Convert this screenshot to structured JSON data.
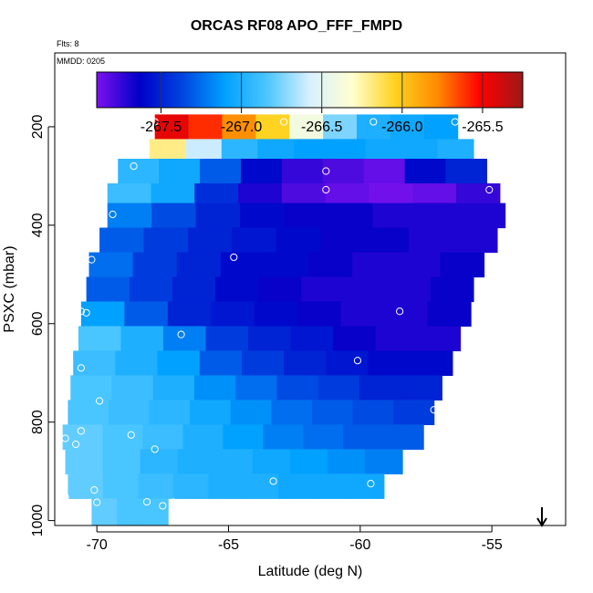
{
  "chart_data": {
    "type": "heatmap",
    "title": "ORCAS RF08 APO_FFF_FMPD",
    "annotations": {
      "flights": "Flts: 8",
      "date": "MMDD: 0205"
    },
    "xlabel": "Latitude (deg N)",
    "ylabel": "PSXC (mbar)",
    "xlim": [
      -71.6,
      -52.2
    ],
    "ylim": [
      1010,
      50
    ],
    "y_inverted": true,
    "x_ticks": [
      -70,
      -65,
      -60,
      -55
    ],
    "x_tick_labels": [
      "-70",
      "-65",
      "-60",
      "-55"
    ],
    "y_ticks": [
      200,
      400,
      600,
      800,
      1000
    ],
    "y_tick_labels": [
      "200",
      "400",
      "600",
      "800",
      "1000"
    ],
    "colorbar": {
      "range": [
        -267.9,
        -265.25
      ],
      "ticks": [
        -267.5,
        -267.0,
        -266.5,
        -266.0,
        -265.5
      ],
      "tick_labels": [
        "-267.5",
        "-267.0",
        "-266.5",
        "-266.0",
        "-265.5"
      ],
      "stops": [
        "#7b11ef",
        "#0000c8",
        "#0044e0",
        "#00a0ff",
        "#4cc6ff",
        "#d8f0ff",
        "#ffffd0",
        "#ffd21f",
        "#ff8a00",
        "#ff0000",
        "#9e1818"
      ]
    },
    "pressure_bands": [
      {
        "p_top": 175,
        "p_bottom": 225,
        "lat_start": -67.8,
        "lat_end": -56.3,
        "values": [
          -265.45,
          -265.6,
          -265.8,
          -266.05,
          -266.4,
          -266.75,
          -267.0,
          -267.05,
          -267.1
        ]
      },
      {
        "p_top": 225,
        "p_bottom": 265,
        "lat_start": -68.0,
        "lat_end": -55.7,
        "values": [
          -266.2,
          -266.6,
          -266.95,
          -267.05,
          -267.1,
          -267.1,
          -267.05,
          -267.05,
          -267.0
        ]
      },
      {
        "p_top": 265,
        "p_bottom": 315,
        "lat_start": -69.2,
        "lat_end": -55.2,
        "values": [
          -266.95,
          -267.05,
          -267.3,
          -267.6,
          -267.75,
          -267.8,
          -267.85,
          -267.6,
          -267.5
        ]
      },
      {
        "p_top": 315,
        "p_bottom": 355,
        "lat_start": -69.6,
        "lat_end": -54.7,
        "values": [
          -266.9,
          -267.05,
          -267.45,
          -267.7,
          -267.8,
          -267.85,
          -267.88,
          -267.85,
          -267.75
        ]
      },
      {
        "p_top": 355,
        "p_bottom": 405,
        "lat_start": -69.6,
        "lat_end": -54.5,
        "values": [
          -267.2,
          -267.35,
          -267.5,
          -267.6,
          -267.65,
          -267.65,
          -267.7,
          -267.7,
          -267.7
        ]
      },
      {
        "p_top": 405,
        "p_bottom": 455,
        "lat_start": -69.9,
        "lat_end": -54.8,
        "values": [
          -267.3,
          -267.4,
          -267.5,
          -267.55,
          -267.6,
          -267.65,
          -267.65,
          -267.7,
          -267.7
        ]
      },
      {
        "p_top": 455,
        "p_bottom": 505,
        "lat_start": -70.3,
        "lat_end": -55.3,
        "values": [
          -267.25,
          -267.4,
          -267.5,
          -267.6,
          -267.6,
          -267.65,
          -267.7,
          -267.7,
          -267.65
        ]
      },
      {
        "p_top": 505,
        "p_bottom": 555,
        "lat_start": -70.4,
        "lat_end": -55.7,
        "values": [
          -267.3,
          -267.4,
          -267.5,
          -267.6,
          -267.65,
          -267.7,
          -267.7,
          -267.7,
          -267.65
        ]
      },
      {
        "p_top": 555,
        "p_bottom": 605,
        "lat_start": -70.6,
        "lat_end": -55.8,
        "values": [
          -267.1,
          -267.3,
          -267.5,
          -267.55,
          -267.6,
          -267.65,
          -267.7,
          -267.7,
          -267.65
        ]
      },
      {
        "p_top": 605,
        "p_bottom": 655,
        "lat_start": -70.7,
        "lat_end": -56.2,
        "values": [
          -266.85,
          -267.0,
          -267.2,
          -267.4,
          -267.5,
          -267.55,
          -267.65,
          -267.7,
          -267.7
        ]
      },
      {
        "p_top": 655,
        "p_bottom": 705,
        "lat_start": -70.9,
        "lat_end": -56.5,
        "values": [
          -266.9,
          -267.0,
          -267.1,
          -267.3,
          -267.4,
          -267.5,
          -267.55,
          -267.6,
          -267.6
        ]
      },
      {
        "p_top": 705,
        "p_bottom": 755,
        "lat_start": -71.0,
        "lat_end": -56.9,
        "values": [
          -266.85,
          -266.9,
          -267.0,
          -267.15,
          -267.25,
          -267.35,
          -267.4,
          -267.5,
          -267.5
        ]
      },
      {
        "p_top": 755,
        "p_bottom": 805,
        "lat_start": -71.1,
        "lat_end": -57.2,
        "values": [
          -266.85,
          -266.9,
          -266.95,
          -267.05,
          -267.15,
          -267.25,
          -267.3,
          -267.35,
          -267.4
        ]
      },
      {
        "p_top": 805,
        "p_bottom": 855,
        "lat_start": -71.3,
        "lat_end": -57.6,
        "values": [
          -266.8,
          -266.85,
          -266.9,
          -267.0,
          -267.1,
          -267.2,
          -267.25,
          -267.3,
          -267.3
        ]
      },
      {
        "p_top": 855,
        "p_bottom": 905,
        "lat_start": -71.2,
        "lat_end": -58.4,
        "values": [
          -266.8,
          -266.85,
          -266.95,
          -267.0,
          -267.0,
          -267.05,
          -267.1,
          -267.15,
          -267.2
        ]
      },
      {
        "p_top": 905,
        "p_bottom": 955,
        "lat_start": -71.1,
        "lat_end": -59.1,
        "values": [
          -266.8,
          -266.85,
          -266.9,
          -266.95,
          -267.0,
          -267.0,
          -267.05,
          -267.05,
          -267.05
        ]
      },
      {
        "p_top": 955,
        "p_bottom": 1010,
        "lat_start": -70.2,
        "lat_end": -67.3,
        "values": [
          -266.8,
          -266.85,
          -266.85
        ]
      }
    ],
    "sample_points": [
      {
        "lat": -67.8,
        "p": 190
      },
      {
        "lat": -62.9,
        "p": 190
      },
      {
        "lat": -59.5,
        "p": 190
      },
      {
        "lat": -56.4,
        "p": 190
      },
      {
        "lat": -68.6,
        "p": 280
      },
      {
        "lat": -61.3,
        "p": 290
      },
      {
        "lat": -61.3,
        "p": 328
      },
      {
        "lat": -55.1,
        "p": 328
      },
      {
        "lat": -54.3,
        "p": 330
      },
      {
        "lat": -69.4,
        "p": 378
      },
      {
        "lat": -64.8,
        "p": 465
      },
      {
        "lat": -70.2,
        "p": 470
      },
      {
        "lat": -70.6,
        "p": 575
      },
      {
        "lat": -70.4,
        "p": 578
      },
      {
        "lat": -58.5,
        "p": 575
      },
      {
        "lat": -66.8,
        "p": 622
      },
      {
        "lat": -60.1,
        "p": 675
      },
      {
        "lat": -70.6,
        "p": 690
      },
      {
        "lat": -69.9,
        "p": 757
      },
      {
        "lat": -57.2,
        "p": 775
      },
      {
        "lat": -70.6,
        "p": 818
      },
      {
        "lat": -71.2,
        "p": 833
      },
      {
        "lat": -70.8,
        "p": 845
      },
      {
        "lat": -68.7,
        "p": 826
      },
      {
        "lat": -67.8,
        "p": 855
      },
      {
        "lat": -63.3,
        "p": 920
      },
      {
        "lat": -59.6,
        "p": 925
      },
      {
        "lat": -70.1,
        "p": 938
      },
      {
        "lat": -71.2,
        "p": 952
      },
      {
        "lat": -70.0,
        "p": 963
      },
      {
        "lat": -68.1,
        "p": 962
      },
      {
        "lat": -67.1,
        "p": 963
      },
      {
        "lat": -67.5,
        "p": 970
      }
    ],
    "arrow": {
      "lat": -53.1,
      "direction": "down"
    }
  }
}
